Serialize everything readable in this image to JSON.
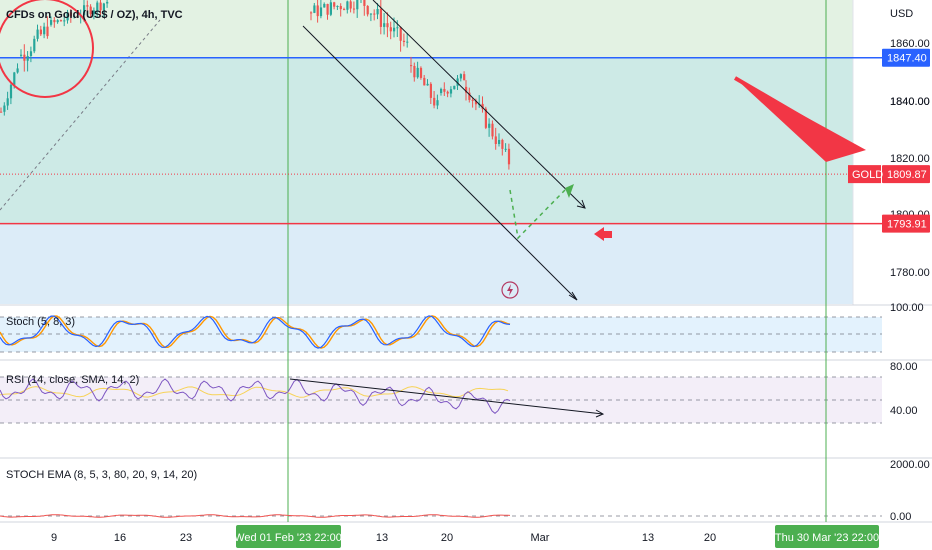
{
  "chart_data": {
    "type": "candlestick",
    "title": "CFDs on Gold (US$ / OZ), 4h, TVC",
    "currency": "USD",
    "price_axis": {
      "range": [
        1768,
        1866
      ],
      "ticks": [
        "1860.00",
        "1840.00",
        "1840.00",
        "1820.00",
        "1800.00",
        "1780.00"
      ]
    },
    "price_labels": {
      "resistance": "1847.40",
      "symbol": "GOLD",
      "last": "1809.87",
      "support": "1793.91"
    },
    "time_axis": {
      "ticks": [
        "9",
        "16",
        "23",
        "13",
        "20",
        "Mar",
        "13",
        "20"
      ],
      "highlight_left": "Wed 01 Feb '23  22:00",
      "highlight_right": "Thu 30 Mar '23  22:00"
    },
    "panes": [
      {
        "title": "Stoch (5, 8, 3)",
        "axis_ticks": [
          "100.00"
        ]
      },
      {
        "title": "RSI (14, close, SMA, 14, 2)",
        "axis_ticks": [
          "80.00",
          "40.00"
        ]
      },
      {
        "title": "STOCH EMA (8, 5, 3, 80, 20, 9, 14, 20)",
        "axis_ticks": [
          "2000.00",
          "0.00"
        ]
      }
    ],
    "colors": {
      "up": "#26a69a",
      "down": "#ef5350",
      "resistance_line": "#2962ff",
      "support_line": "#f23645",
      "arrow": "#f23645",
      "last_price": "#f23645",
      "stoch_k": "#2962ff",
      "stoch_d": "#ff9800",
      "rsi": "#7e57c2",
      "rsi_sma": "#f7d358",
      "vertical_marker": "#4caf50"
    },
    "grid": false
  }
}
